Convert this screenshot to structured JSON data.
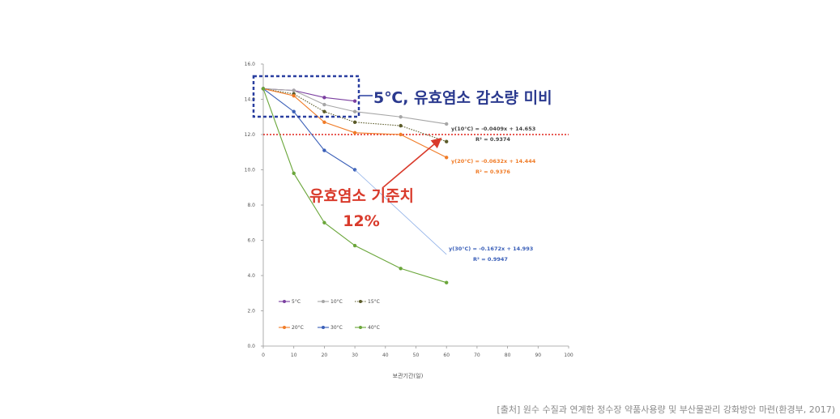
{
  "chart_data": {
    "type": "line",
    "xlim": [
      0,
      100
    ],
    "ylim": [
      0,
      16
    ],
    "xticks": [
      "0",
      "10",
      "20",
      "30",
      "40",
      "50",
      "60",
      "70",
      "80",
      "90",
      "100"
    ],
    "yticks": [
      "0.0",
      "2.0",
      "4.0",
      "6.0",
      "8.0",
      "10.0",
      "12.0",
      "14.0",
      "16.0"
    ],
    "xlabel": "보관기간(일)",
    "ylabel": "",
    "grid": false,
    "legend_position": "bottom-left",
    "threshold": 12,
    "series": [
      {
        "name": "5°C",
        "color": "#7b3fa0",
        "x": [
          0,
          10,
          20,
          30
        ],
        "y": [
          14.6,
          14.5,
          14.1,
          13.9
        ]
      },
      {
        "name": "10°C",
        "color": "#a6a6a6",
        "x": [
          0,
          10,
          20,
          30,
          45,
          60
        ],
        "y": [
          14.6,
          14.5,
          13.7,
          13.3,
          13.0,
          12.6
        ]
      },
      {
        "name": "15°C",
        "color": "#5a5a28",
        "dashed": true,
        "x": [
          0,
          10,
          20,
          30,
          45,
          60
        ],
        "y": [
          14.6,
          14.3,
          13.3,
          12.7,
          12.5,
          11.6
        ]
      },
      {
        "name": "20°C",
        "color": "#f07c28",
        "x": [
          0,
          10,
          20,
          30,
          45,
          60
        ],
        "y": [
          14.6,
          14.2,
          12.7,
          12.1,
          12.0,
          10.7
        ]
      },
      {
        "name": "30°C",
        "color": "#3a5fb8",
        "x": [
          0,
          10,
          20,
          30
        ],
        "y": [
          14.6,
          13.3,
          11.1,
          10.0
        ]
      },
      {
        "name": "40°C",
        "color": "#6aa63a",
        "x": [
          0,
          10,
          20,
          30,
          45,
          60
        ],
        "y": [
          14.6,
          9.8,
          7.0,
          5.7,
          4.4,
          3.6
        ]
      }
    ],
    "equations": [
      {
        "line1": "y(10°C) = -0.0409x + 14.653",
        "line2": "R² = 0.9374",
        "color": "#444444"
      },
      {
        "line1": "y(20°C) = -0.0632x + 14.444",
        "line2": "R² = 0.9376",
        "color": "#f07c28"
      },
      {
        "line1": "y(30°C) = -0.1672x + 14.993",
        "line2": "R² = 0.9947",
        "color": "#3a5fb8"
      }
    ],
    "annotations": {
      "box_label": "5℃, 유효염소 감소량 미비",
      "threshold_label_1": "유효염소 기준치",
      "threshold_label_2": "12%"
    }
  },
  "caption": "[출처] 원수 수질과 연계한 정수장 약품사용량 및 부산물관리 강화방안 마련(환경부, 2017)"
}
